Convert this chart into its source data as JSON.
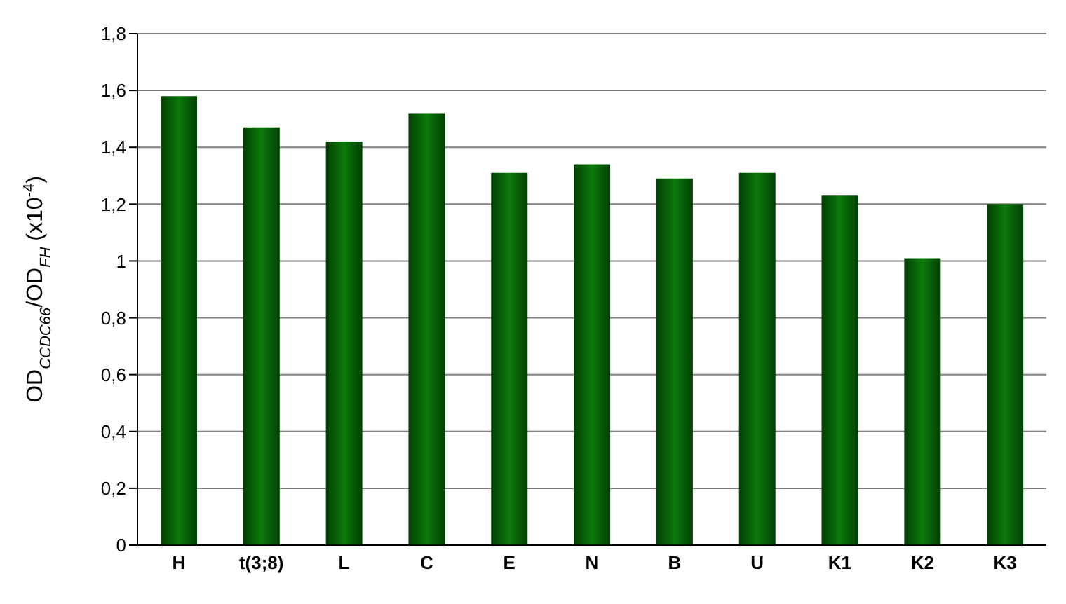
{
  "chart_data": {
    "type": "bar",
    "ylabel": "OD$_{CCDC66}$/OD$_{FH}$ (x10$^{-4}$)",
    "categories": [
      "H",
      "t(3;8)",
      "L",
      "C",
      "E",
      "N",
      "B",
      "U",
      "K1",
      "K2",
      "K3"
    ],
    "values": [
      1.58,
      1.47,
      1.42,
      1.52,
      1.31,
      1.34,
      1.29,
      1.31,
      1.23,
      1.01,
      1.2
    ],
    "color": "#0b7a0b",
    "ylim": [
      0,
      1.8
    ],
    "yticks": [
      0,
      {
        "value": 0.2,
        "label": "0,2"
      },
      {
        "value": 0.4,
        "label": "0,4"
      },
      {
        "value": 0.6,
        "label": "0,6"
      },
      {
        "value": 0.8,
        "label": "0,8"
      },
      1,
      {
        "value": 1.2,
        "label": "1,2"
      },
      {
        "value": 1.4,
        "label": "1,4"
      },
      {
        "value": 1.6,
        "label": "1,6"
      },
      {
        "value": 1.8,
        "label": "1,8"
      }
    ],
    "grid": "y",
    "legend": false
  }
}
